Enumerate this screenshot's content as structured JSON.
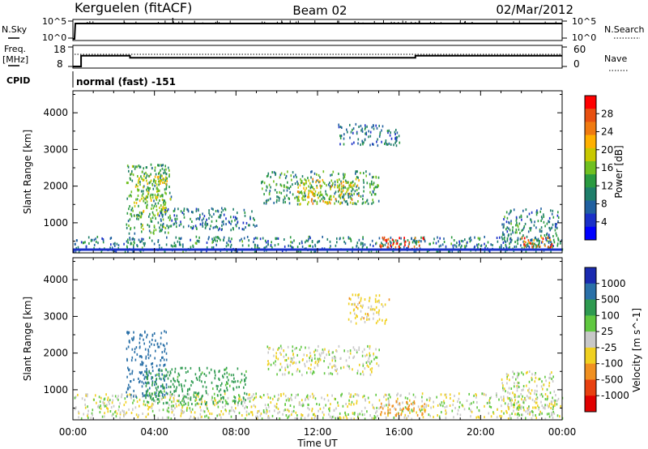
{
  "header": {
    "title_left": "Kerguelen (fitACF)",
    "title_center": "Beam 02",
    "title_right": "02/Mar/2012"
  },
  "strips": {
    "nsky_label": "N.Sky",
    "nsky_ticks": [
      "10^5",
      "10^0"
    ],
    "nsearch_label": "N.Search",
    "nsearch_ticks": [
      "10^5",
      "10^0"
    ],
    "freq_label_1": "Freq.",
    "freq_label_2": "[MHz]",
    "freq_ticks": [
      "18",
      "8"
    ],
    "nave_label": "Nave",
    "nave_ticks": [
      "60",
      "0"
    ],
    "cpid_label": "CPID",
    "cpid_text": "normal (fast) -151"
  },
  "power_colorbar": {
    "label": "Power [dB]",
    "ticks": [
      "28",
      "24",
      "20",
      "16",
      "12",
      "8",
      "4"
    ],
    "colors": [
      "#ff0000",
      "#e85010",
      "#f07a10",
      "#ffb000",
      "#c8c800",
      "#70c020",
      "#2a9a40",
      "#1e7e6a",
      "#2060a0",
      "#1a30c8",
      "#0000ff"
    ]
  },
  "velocity_colorbar": {
    "label": "Velocity [m s^-1]",
    "ticks": [
      "1000",
      "500",
      "100",
      "25",
      "-25",
      "-100",
      "-500",
      "-1000"
    ],
    "colors": [
      "#1a2ab0",
      "#2a70a8",
      "#2e9a50",
      "#60c840",
      "#c8c8c8",
      "#f0d020",
      "#f09020",
      "#e84010",
      "#e00000"
    ]
  },
  "axes": {
    "ylabel": "Slant Range [km]",
    "yticks": [
      "4000",
      "3000",
      "2000",
      "1000"
    ],
    "xlabel": "Time UT",
    "xticks": [
      "00:00",
      "04:00",
      "08:00",
      "12:00",
      "16:00",
      "20:00",
      "00:00"
    ]
  },
  "chart_data": [
    {
      "type": "line",
      "title": "N.Sky / N.Search",
      "x_range": [
        0,
        24
      ],
      "note_series": [
        {
          "name": "N.Sky",
          "values_level": "high",
          "x": [
            0,
            0.4,
            24
          ]
        },
        {
          "name": "N.Search",
          "values_level": "low"
        }
      ]
    },
    {
      "type": "line",
      "title": "Freq. / Nave",
      "x_range": [
        0,
        24
      ],
      "series": [
        {
          "name": "Freq.",
          "x": [
            0,
            0.4,
            0.4,
            2.8,
            2.8,
            16.8,
            16.8,
            24
          ],
          "values": [
            8,
            8,
            13.5,
            13.5,
            12.5,
            12.5,
            13.5,
            13.5
          ]
        },
        {
          "name": "Nave",
          "x": [
            0,
            24
          ],
          "values": [
            28,
            28
          ]
        }
      ]
    },
    {
      "type": "heatmap",
      "title": "Power",
      "xlabel": "Time UT",
      "ylabel": "Slant Range [km]",
      "x_range": [
        0,
        24
      ],
      "ylim": [
        180,
        4600
      ],
      "colorbar": {
        "label": "Power [dB]",
        "range": [
          0,
          32
        ],
        "ticks": [
          4,
          8,
          12,
          16,
          20,
          24,
          28
        ]
      },
      "regions": [
        {
          "t0": 0.0,
          "t1": 24.0,
          "r0": 200,
          "r1": 620,
          "value": 10
        },
        {
          "t0": 2.6,
          "t1": 4.8,
          "r0": 700,
          "r1": 2600,
          "value": 13
        },
        {
          "t0": 3.0,
          "t1": 4.6,
          "r0": 1200,
          "r1": 2300,
          "value": 18
        },
        {
          "t0": 4.2,
          "t1": 9.0,
          "r0": 800,
          "r1": 1400,
          "value": 9
        },
        {
          "t0": 9.2,
          "t1": 15.0,
          "r0": 1500,
          "r1": 2400,
          "value": 12
        },
        {
          "t0": 11.0,
          "t1": 14.0,
          "r0": 1500,
          "r1": 2200,
          "value": 20
        },
        {
          "t0": 13.0,
          "t1": 16.0,
          "r0": 3100,
          "r1": 3700,
          "value": 8
        },
        {
          "t0": 15.0,
          "t1": 17.2,
          "r0": 250,
          "r1": 600,
          "value": 28
        },
        {
          "t0": 21.0,
          "t1": 23.8,
          "r0": 300,
          "r1": 1400,
          "value": 10
        },
        {
          "t0": 22.0,
          "t1": 23.5,
          "r0": 250,
          "r1": 600,
          "value": 26
        }
      ]
    },
    {
      "type": "heatmap",
      "title": "Velocity",
      "xlabel": "Time UT",
      "ylabel": "Slant Range [km]",
      "x_range": [
        0,
        24
      ],
      "ylim": [
        180,
        4600
      ],
      "colorbar": {
        "label": "Velocity [m s^-1]",
        "ticks": [
          1000,
          500,
          100,
          25,
          -25,
          -100,
          -500,
          -1000
        ]
      },
      "regions": [
        {
          "t0": 0.0,
          "t1": 24.0,
          "r0": 200,
          "r1": 900,
          "value": 0
        },
        {
          "t0": 2.6,
          "t1": 4.6,
          "r0": 800,
          "r1": 2600,
          "value": 700
        },
        {
          "t0": 3.5,
          "t1": 8.5,
          "r0": 600,
          "r1": 1600,
          "value": 150
        },
        {
          "t0": 9.5,
          "t1": 15.0,
          "r0": 1400,
          "r1": 2200,
          "value": 0
        },
        {
          "t0": 13.5,
          "t1": 15.5,
          "r0": 2800,
          "r1": 3600,
          "value": -50
        },
        {
          "t0": 15.0,
          "t1": 17.3,
          "r0": 300,
          "r1": 700,
          "value": -300
        },
        {
          "t0": 21.0,
          "t1": 23.6,
          "r0": 300,
          "r1": 1500,
          "value": 0
        }
      ]
    }
  ]
}
